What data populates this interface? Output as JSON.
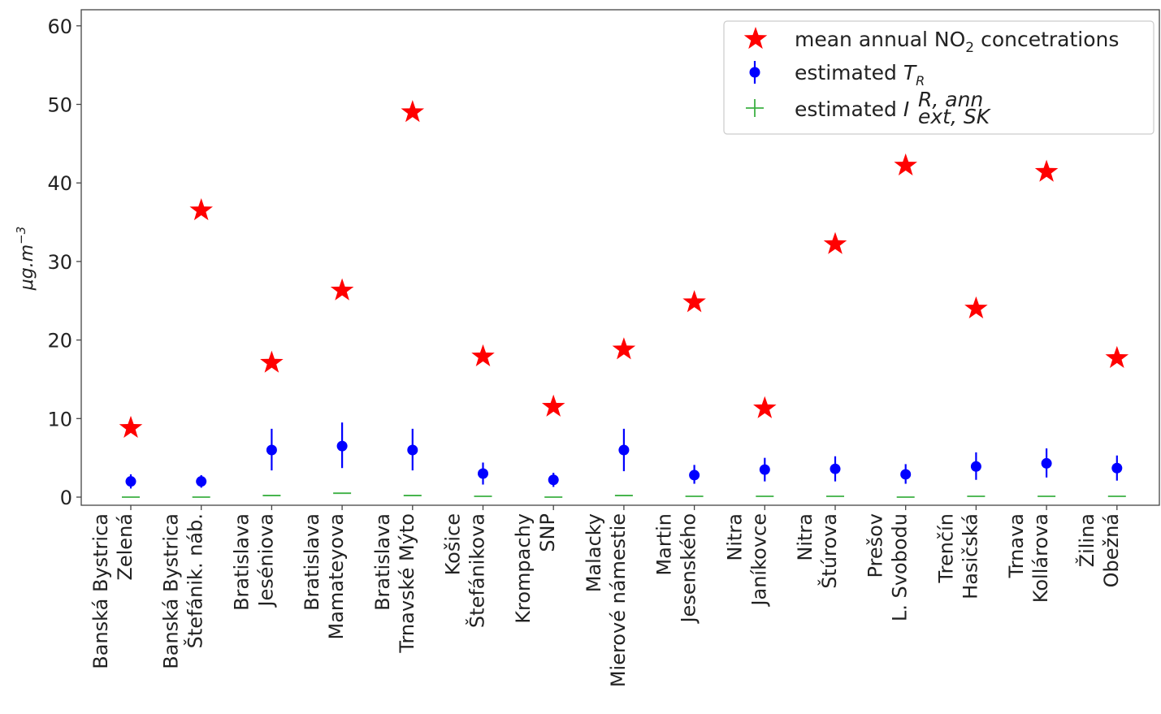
{
  "chart_data": {
    "type": "scatter",
    "ylabel": "μg.m",
    "ylabel_exponent": "−3",
    "ylim": [
      -1,
      62
    ],
    "yticks": [
      0,
      10,
      20,
      30,
      40,
      50,
      60
    ],
    "grid": false,
    "legend_placement": "top-right",
    "categories": [
      [
        "Banská Bystrica",
        "Zelená"
      ],
      [
        "Banská Bystrica",
        "Štefánik. náb."
      ],
      [
        "Bratislava",
        "Jeséniova"
      ],
      [
        "Bratislava",
        "Mamateyova"
      ],
      [
        "Bratislava",
        "Trnavské Mýto"
      ],
      [
        "Košice",
        "Štefánikova"
      ],
      [
        "Krompachy",
        "SNP"
      ],
      [
        "Malacky",
        "Mierové námestie"
      ],
      [
        "Martin",
        "Jesenského"
      ],
      [
        "Nitra",
        "Janíkovce"
      ],
      [
        "Nitra",
        "Štúrova"
      ],
      [
        "Prešov",
        "L. Svobodu"
      ],
      [
        "Trenčín",
        "Hasičská"
      ],
      [
        "Trnava",
        "Kollárova"
      ],
      [
        "Žilina",
        "Obežná"
      ]
    ],
    "series": [
      {
        "marker": "star",
        "color": "#ff0000",
        "legend": {
          "text": "mean annual NO",
          "sub": "2",
          "tail": " concetrations"
        },
        "values": [
          8.8,
          36.5,
          17.1,
          26.3,
          49.0,
          17.9,
          11.5,
          18.8,
          24.8,
          11.3,
          32.2,
          42.2,
          24.0,
          41.4,
          17.7
        ]
      },
      {
        "marker": "dot-errorbar",
        "color": "#0000ff",
        "legend": {
          "text": "estimated ",
          "italic": "T",
          "sub": "R"
        },
        "values": [
          2.0,
          2.0,
          6.0,
          6.5,
          6.0,
          3.0,
          2.2,
          6.0,
          2.8,
          3.5,
          3.6,
          2.9,
          3.9,
          4.3,
          3.7
        ],
        "err_low": [
          0.9,
          0.8,
          2.6,
          2.8,
          2.6,
          1.4,
          0.9,
          2.7,
          1.1,
          1.5,
          1.6,
          1.2,
          1.7,
          1.8,
          1.6
        ],
        "err_high": [
          0.9,
          0.8,
          2.7,
          3.0,
          2.7,
          1.4,
          0.9,
          2.7,
          1.3,
          1.5,
          1.6,
          1.3,
          1.8,
          1.9,
          1.6
        ]
      },
      {
        "marker": "plus-errorbar",
        "color": "#3cb043",
        "legend": {
          "text": "estimated ",
          "italic": "I",
          "sup": "R, ann",
          "sub": "ext, SK"
        },
        "values": [
          0.0,
          0.0,
          0.2,
          0.5,
          0.2,
          0.1,
          0.0,
          0.2,
          0.1,
          0.1,
          0.1,
          0.0,
          0.1,
          0.1,
          0.1
        ]
      }
    ]
  }
}
